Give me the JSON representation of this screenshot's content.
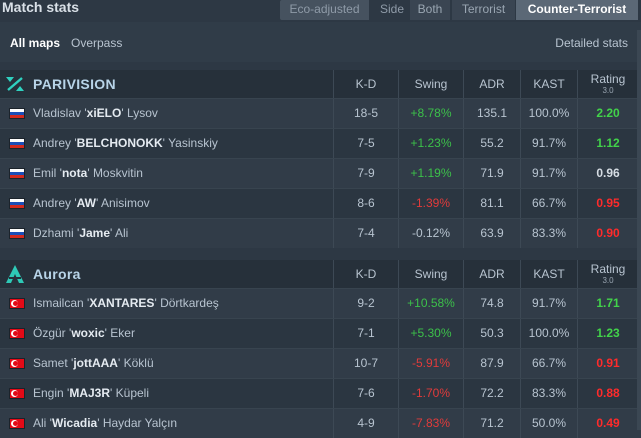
{
  "header": {
    "title": "Match stats",
    "eco_label": "Eco-adjusted",
    "side_label": "Side",
    "side_options": [
      "Both",
      "Terrorist",
      "Counter-Terrorist"
    ],
    "selected_side": "Counter-Terrorist"
  },
  "maps": {
    "items": [
      "All maps",
      "Overpass"
    ],
    "selected": "All maps",
    "detailed_link": "Detailed stats"
  },
  "columns": {
    "kd": "K-D",
    "swing": "Swing",
    "adr": "ADR",
    "kast": "KAST",
    "rating": "Rating",
    "rating_version": "3.0"
  },
  "teams": [
    {
      "name": "PARIVISION",
      "logo_icon": "parivision-logo-icon",
      "players": [
        {
          "first": "Vladislav '",
          "nick": "xiELO",
          "last": "' Lysov",
          "flag": "ru",
          "kd": "18-5",
          "swing": "+8.78%",
          "adr": "135.1",
          "kast": "100.0%",
          "rating": "2.20"
        },
        {
          "first": "Andrey '",
          "nick": "BELCHONOKK",
          "last": "' Yasinskiy",
          "flag": "ru",
          "kd": "7-5",
          "swing": "+1.23%",
          "adr": "55.2",
          "kast": "91.7%",
          "rating": "1.12"
        },
        {
          "first": "Emil '",
          "nick": "nota",
          "last": "' Moskvitin",
          "flag": "ru",
          "kd": "7-9",
          "swing": "+1.19%",
          "adr": "71.9",
          "kast": "91.7%",
          "rating": "0.96"
        },
        {
          "first": "Andrey '",
          "nick": "AW",
          "last": "' Anisimov",
          "flag": "ru",
          "kd": "8-6",
          "swing": "-1.39%",
          "adr": "81.1",
          "kast": "66.7%",
          "rating": "0.95"
        },
        {
          "first": "Dzhami '",
          "nick": "Jame",
          "last": "' Ali",
          "flag": "ru",
          "kd": "7-4",
          "swing": "-0.12%",
          "adr": "63.9",
          "kast": "83.3%",
          "rating": "0.90"
        }
      ]
    },
    {
      "name": "Aurora",
      "logo_icon": "aurora-logo-icon",
      "players": [
        {
          "first": "Ismailcan '",
          "nick": "XANTARES",
          "last": "' Dörtkardeş",
          "flag": "tr",
          "kd": "9-2",
          "swing": "+10.58%",
          "adr": "74.8",
          "kast": "91.7%",
          "rating": "1.71"
        },
        {
          "first": "Özgür '",
          "nick": "woxic",
          "last": "' Eker",
          "flag": "tr",
          "kd": "7-1",
          "swing": "+5.30%",
          "adr": "50.3",
          "kast": "100.0%",
          "rating": "1.23"
        },
        {
          "first": "Samet '",
          "nick": "jottAAA",
          "last": "' Köklü",
          "flag": "tr",
          "kd": "10-7",
          "swing": "-5.91%",
          "adr": "87.9",
          "kast": "66.7%",
          "rating": "0.91"
        },
        {
          "first": "Engin '",
          "nick": "MAJ3R",
          "last": "' Küpeli",
          "flag": "tr",
          "kd": "7-6",
          "swing": "-1.70%",
          "adr": "72.2",
          "kast": "83.3%",
          "rating": "0.88"
        },
        {
          "first": "Ali '",
          "nick": "Wicadia",
          "last": "' Haydar Yalçın",
          "flag": "tr",
          "kd": "4-9",
          "swing": "-7.83%",
          "adr": "71.2",
          "kast": "50.0%",
          "rating": "0.49"
        }
      ]
    }
  ],
  "colors": {
    "positive": "#3cc04a",
    "negative": "#e23b3b",
    "rating_good": "#42d34a",
    "rating_bad": "#ff2b2b"
  }
}
